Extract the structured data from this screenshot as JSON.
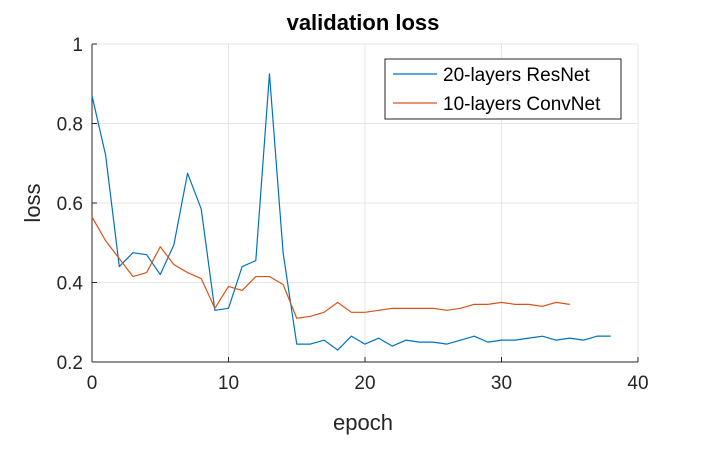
{
  "chart_data": {
    "type": "line",
    "title": "validation loss",
    "xlabel": "epoch",
    "ylabel": "loss",
    "xlim": [
      0,
      40
    ],
    "ylim": [
      0.2,
      1.0
    ],
    "xticks": [
      0,
      10,
      20,
      30,
      40
    ],
    "xtick_labels": [
      "0",
      "10",
      "20",
      "30",
      "40"
    ],
    "yticks": [
      0.2,
      0.4,
      0.6,
      0.8,
      1.0
    ],
    "ytick_labels": [
      "0.2",
      "0.4",
      "0.6",
      "0.8",
      "1"
    ],
    "grid": true,
    "legend_position": "top-right",
    "series": [
      {
        "name": "20-layers ResNet",
        "color": "#0072BD",
        "x": [
          0,
          1,
          2,
          3,
          4,
          5,
          6,
          7,
          8,
          9,
          10,
          11,
          12,
          13,
          14,
          15,
          16,
          17,
          18,
          19,
          20,
          21,
          22,
          23,
          24,
          25,
          26,
          27,
          28,
          29,
          30,
          31,
          32,
          33,
          34,
          35,
          36,
          37,
          38
        ],
        "values": [
          0.87,
          0.72,
          0.44,
          0.475,
          0.47,
          0.42,
          0.495,
          0.675,
          0.585,
          0.33,
          0.335,
          0.44,
          0.455,
          0.925,
          0.475,
          0.245,
          0.245,
          0.255,
          0.23,
          0.265,
          0.245,
          0.26,
          0.24,
          0.255,
          0.25,
          0.25,
          0.245,
          0.255,
          0.265,
          0.25,
          0.255,
          0.255,
          0.26,
          0.265,
          0.255,
          0.26,
          0.255,
          0.265,
          0.265
        ]
      },
      {
        "name": "10-layers ConvNet",
        "color": "#D95319",
        "x": [
          0,
          1,
          2,
          3,
          4,
          5,
          6,
          7,
          8,
          9,
          10,
          11,
          12,
          13,
          14,
          15,
          16,
          17,
          18,
          19,
          20,
          21,
          22,
          23,
          24,
          25,
          26,
          27,
          28,
          29,
          30,
          31,
          32,
          33,
          34,
          35
        ],
        "values": [
          0.565,
          0.505,
          0.46,
          0.415,
          0.425,
          0.49,
          0.445,
          0.425,
          0.41,
          0.335,
          0.39,
          0.38,
          0.415,
          0.415,
          0.395,
          0.31,
          0.315,
          0.325,
          0.35,
          0.325,
          0.325,
          0.33,
          0.335,
          0.335,
          0.335,
          0.335,
          0.33,
          0.335,
          0.345,
          0.345,
          0.35,
          0.345,
          0.345,
          0.34,
          0.35,
          0.345
        ]
      }
    ]
  }
}
